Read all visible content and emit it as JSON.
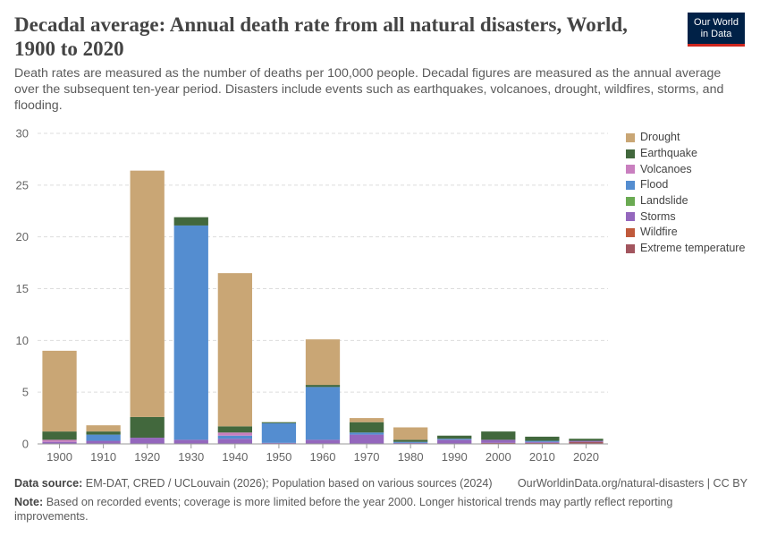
{
  "header": {
    "title": "Decadal average: Annual death rate from all natural disasters, World, 1900 to 2020",
    "subtitle": "Death rates are measured as the number of deaths per 100,000 people. Decadal figures are measured as the annual average over the subsequent ten-year period. Disasters include events such as earthquakes, volcanoes, drought, wildfires, storms, and flooding.",
    "logo_line1": "Our World",
    "logo_line2": "in Data"
  },
  "footer": {
    "source_label": "Data source:",
    "source_text": "EM-DAT, CRED / UCLouvain (2026); Population based on various sources (2024)",
    "url": "OurWorldinData.org/natural-disasters | CC BY",
    "note_label": "Note:",
    "note_text": "Based on recorded events; coverage is more limited before the year 2000. Longer historical trends may partly reflect reporting improvements."
  },
  "chart_data": {
    "type": "bar",
    "stacked": true,
    "categories": [
      "1900",
      "1910",
      "1920",
      "1930",
      "1940",
      "1950",
      "1960",
      "1970",
      "1980",
      "1990",
      "2000",
      "2010",
      "2020"
    ],
    "ylim": [
      0,
      30
    ],
    "yticks": [
      0,
      5,
      10,
      15,
      20,
      25,
      30
    ],
    "grid": true,
    "legend_position": "right",
    "series": [
      {
        "name": "Extreme temperature",
        "color": "#a2555e",
        "values": [
          0,
          0,
          0,
          0,
          0,
          0,
          0,
          0,
          0,
          0,
          0.1,
          0.1,
          0.2
        ]
      },
      {
        "name": "Wildfire",
        "color": "#c05a3c",
        "values": [
          0,
          0,
          0,
          0,
          0,
          0,
          0,
          0,
          0,
          0,
          0,
          0,
          0
        ]
      },
      {
        "name": "Storms",
        "color": "#9467bd",
        "values": [
          0.2,
          0.3,
          0.6,
          0.4,
          0.5,
          0.1,
          0.4,
          0.9,
          0.1,
          0.4,
          0.3,
          0.1,
          0.1
        ]
      },
      {
        "name": "Landslide",
        "color": "#6aaa52",
        "values": [
          0,
          0,
          0,
          0,
          0,
          0,
          0,
          0,
          0,
          0,
          0,
          0,
          0
        ]
      },
      {
        "name": "Flood",
        "color": "#548dd0",
        "values": [
          0,
          0.6,
          0,
          20.7,
          0.3,
          1.9,
          5.1,
          0.2,
          0.1,
          0.1,
          0,
          0.1,
          0
        ]
      },
      {
        "name": "Volcanoes",
        "color": "#c97fbf",
        "values": [
          0.2,
          0,
          0,
          0,
          0.3,
          0,
          0,
          0,
          0,
          0,
          0,
          0,
          0
        ]
      },
      {
        "name": "Earthquake",
        "color": "#42683d",
        "values": [
          0.8,
          0.3,
          2.0,
          0.8,
          0.6,
          0.1,
          0.2,
          1.0,
          0.2,
          0.3,
          0.8,
          0.4,
          0.2
        ]
      },
      {
        "name": "Drought",
        "color": "#c9a675",
        "values": [
          7.8,
          0.6,
          23.8,
          0,
          14.8,
          0,
          4.4,
          0.4,
          1.2,
          0,
          0,
          0,
          0
        ]
      }
    ],
    "legend_order": [
      "Drought",
      "Earthquake",
      "Volcanoes",
      "Flood",
      "Landslide",
      "Storms",
      "Wildfire",
      "Extreme temperature"
    ]
  }
}
